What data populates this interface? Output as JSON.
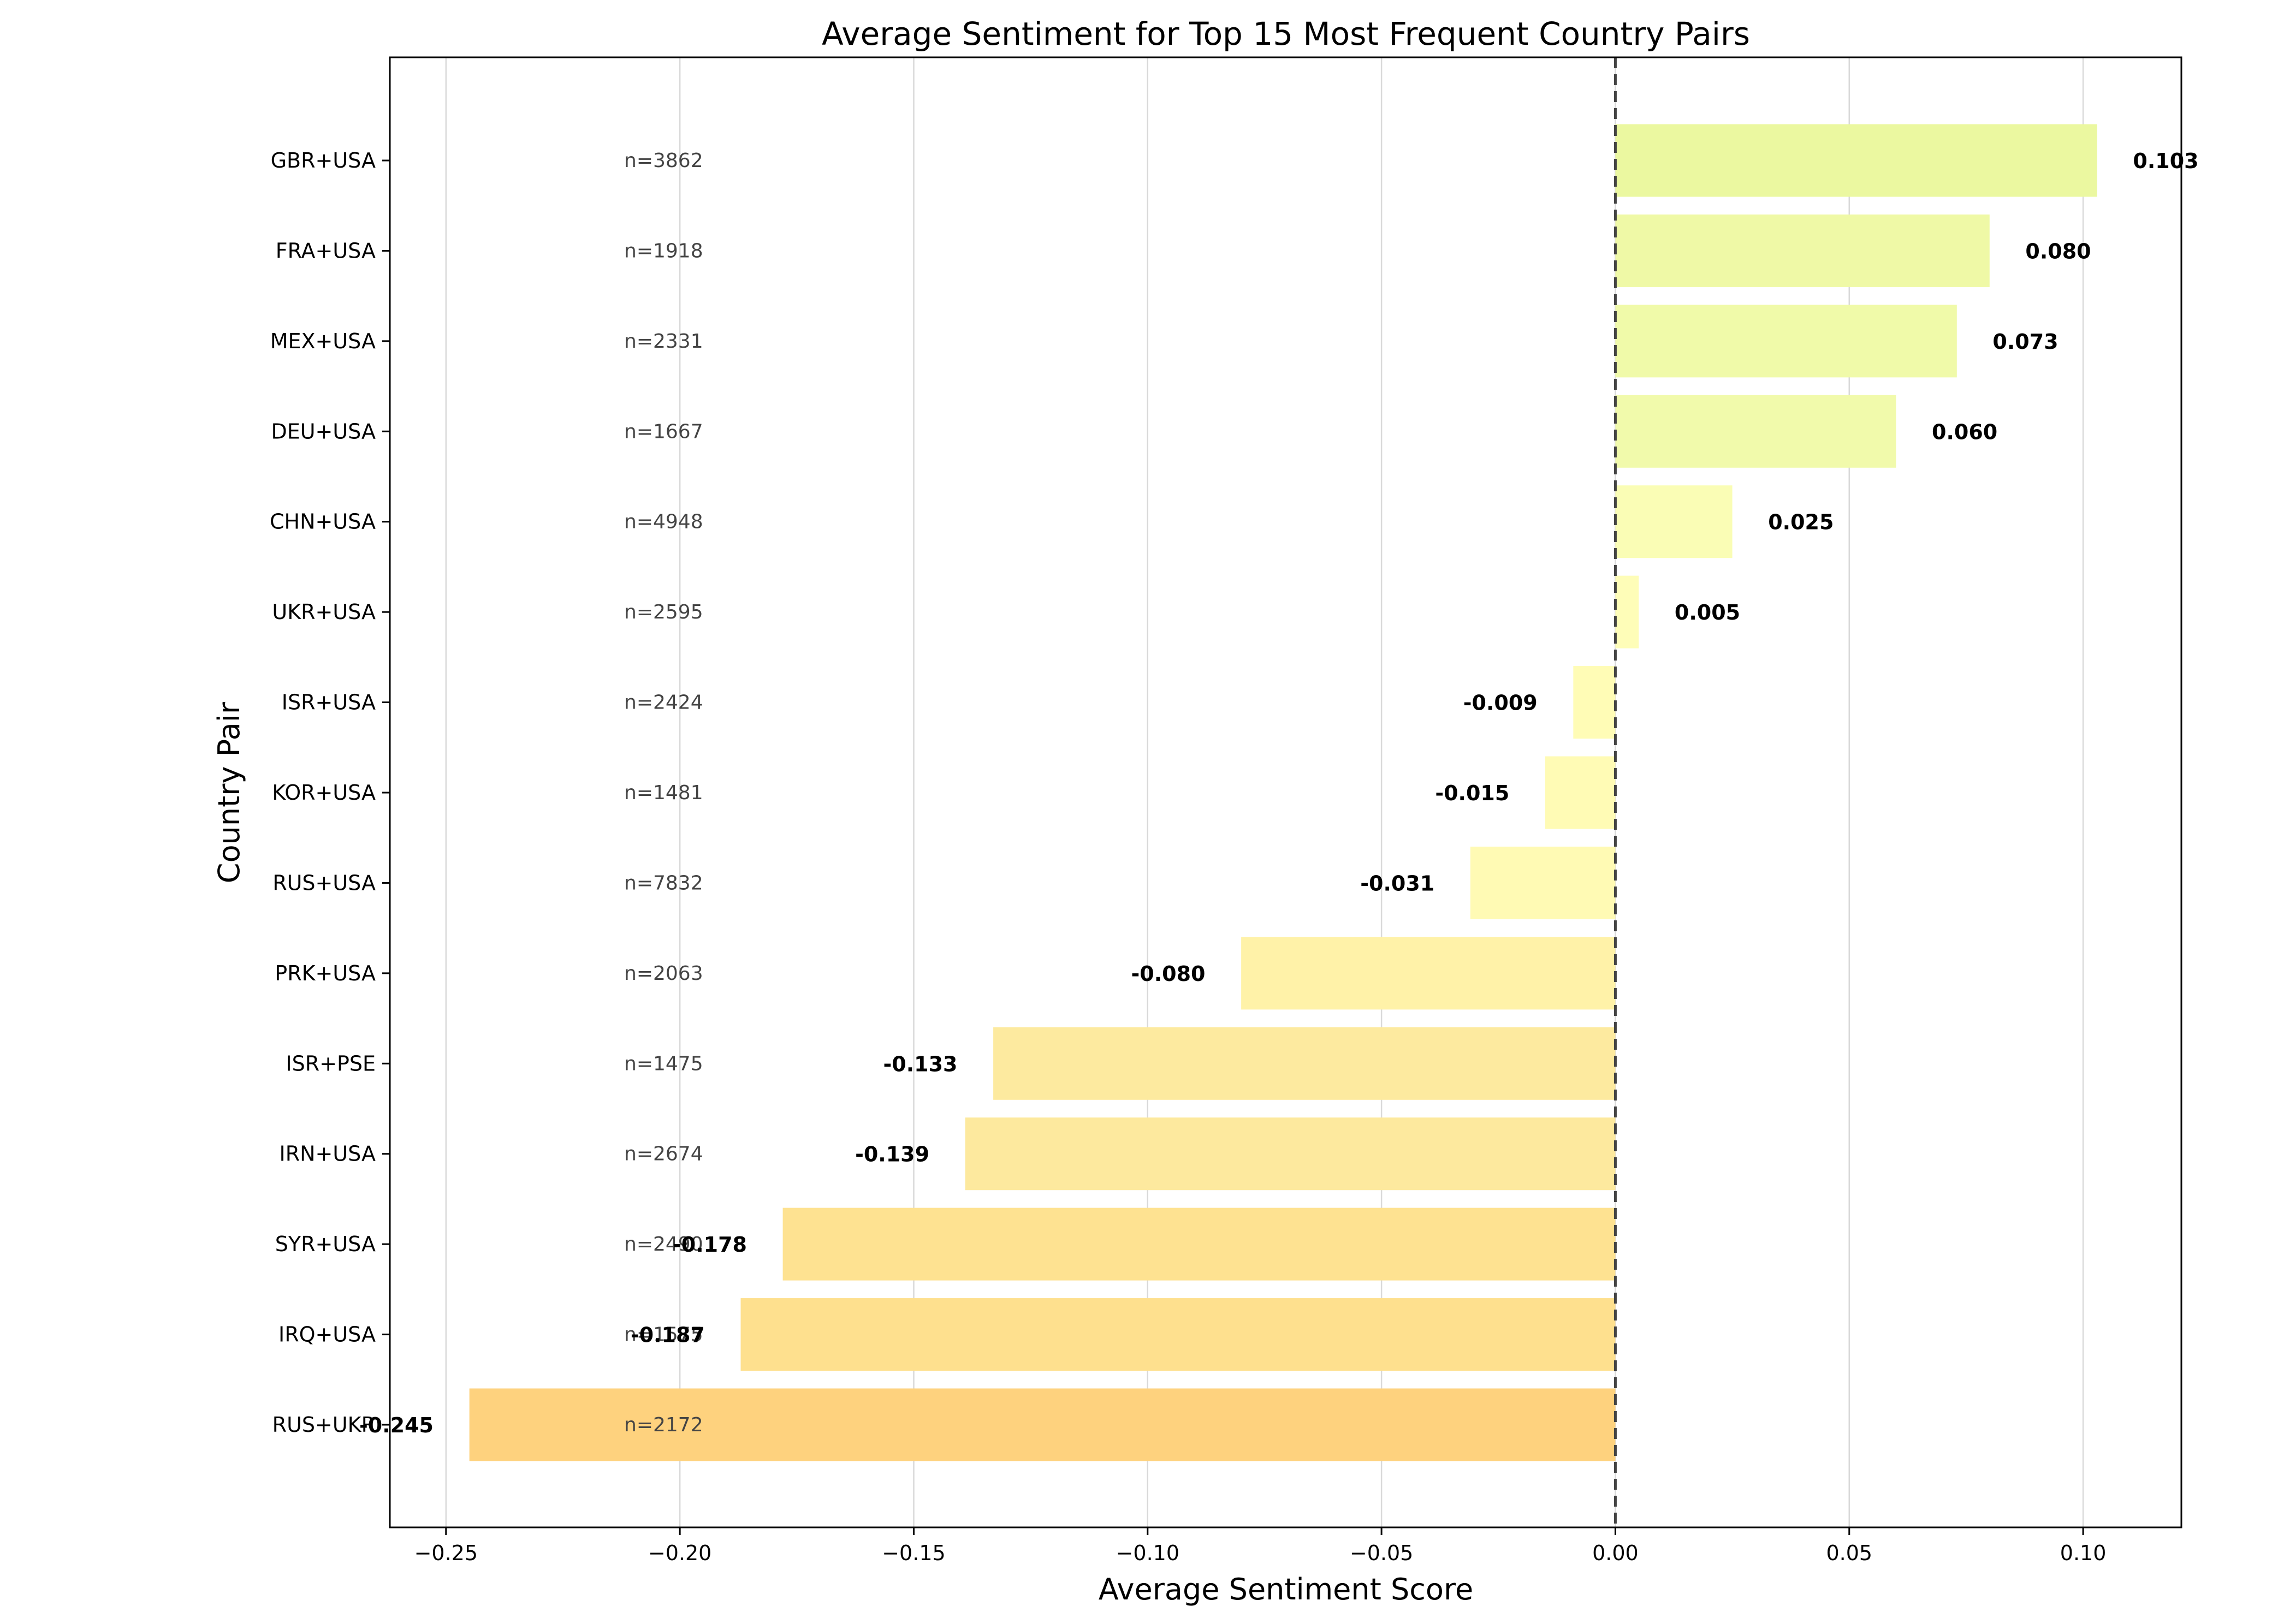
{
  "chart_data": {
    "type": "bar",
    "orientation": "horizontal",
    "title": "Average Sentiment for Top 15 Most Frequent Country Pairs",
    "xlabel": "Average Sentiment Score",
    "ylabel": "Country Pair",
    "xlim": [
      -0.262,
      0.121
    ],
    "xticks": [
      -0.25,
      -0.2,
      -0.15,
      -0.1,
      -0.05,
      0.0,
      0.05,
      0.1
    ],
    "xtick_labels": [
      "−0.25",
      "−0.20",
      "−0.15",
      "−0.10",
      "−0.05",
      "0.00",
      "0.05",
      "0.10"
    ],
    "grid": "vertical",
    "reference_line": {
      "x": 0.0,
      "style": "dashed"
    },
    "categories": [
      "GBR+USA",
      "FRA+USA",
      "MEX+USA",
      "DEU+USA",
      "CHN+USA",
      "UKR+USA",
      "ISR+USA",
      "KOR+USA",
      "RUS+USA",
      "PRK+USA",
      "ISR+PSE",
      "IRN+USA",
      "SYR+USA",
      "IRQ+USA",
      "RUS+UKR"
    ],
    "values": [
      0.103,
      0.08,
      0.073,
      0.06,
      0.025,
      0.005,
      -0.009,
      -0.015,
      -0.031,
      -0.08,
      -0.133,
      -0.139,
      -0.178,
      -0.187,
      -0.245
    ],
    "value_labels": [
      "0.103",
      "0.080",
      "0.073",
      "0.060",
      "0.025",
      "0.005",
      "-0.009",
      "-0.015",
      "-0.031",
      "-0.080",
      "-0.133",
      "-0.139",
      "-0.178",
      "-0.187",
      "-0.245"
    ],
    "counts": [
      "n=3862",
      "n=1918",
      "n=2331",
      "n=1667",
      "n=4948",
      "n=2595",
      "n=2424",
      "n=1481",
      "n=7832",
      "n=2063",
      "n=1475",
      "n=2674",
      "n=2490",
      "n=1575",
      "n=2172"
    ],
    "bar_colors": [
      "#ebf8a0",
      "#eff9a6",
      "#f0faa9",
      "#f1faab",
      "#fafdb5",
      "#fefdb8",
      "#fffcb6",
      "#fffbb5",
      "#fffab4",
      "#fff2a8",
      "#fdea9f",
      "#fde99e",
      "#fee291",
      "#fee08e",
      "#fed27e"
    ]
  }
}
